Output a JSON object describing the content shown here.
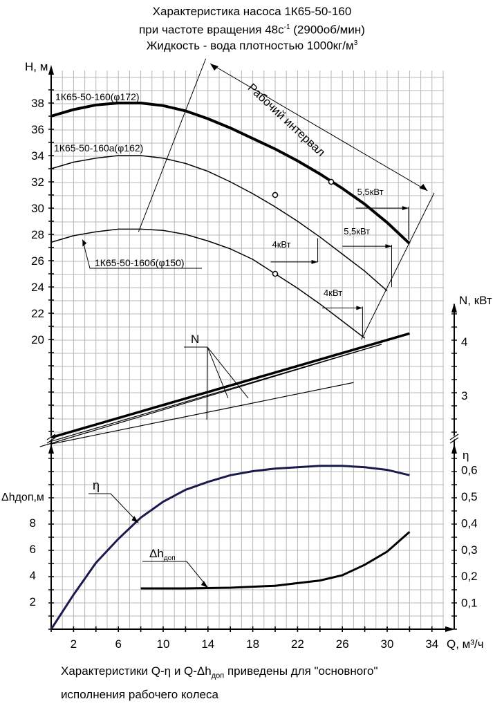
{
  "titles": {
    "line1": "Характеристика насоса 1К65-50-160",
    "line2_prefix": "при частоте вращения 48с",
    "line2_sup": "-1",
    "line2_suffix": " (2900об/мин)",
    "line3_prefix": "Жидкость - вода плотностью 1000кг/м",
    "line3_sup": "3"
  },
  "footer": {
    "line1_prefix": "Характеристики Q-η и Q-Δh",
    "line1_sub": "доп",
    "line1_suffix": " приведены для \"основного\"",
    "line2": "исполнения рабочего колеса"
  },
  "colors": {
    "axis": "#000000",
    "grid": "#b8b8b8",
    "eta_curve": "#1a1a4e"
  },
  "chart_data": {
    "type": "line",
    "x_axis": {
      "label": "Q, м³/ч",
      "range": [
        0,
        35
      ],
      "ticks": [
        2,
        6,
        10,
        14,
        18,
        22,
        26,
        30,
        34
      ]
    },
    "panels": [
      {
        "name": "head",
        "y_axis": {
          "label": "H, м",
          "range": [
            20,
            38
          ],
          "ticks": [
            20,
            22,
            24,
            26,
            28,
            30,
            32,
            34,
            36,
            38
          ]
        },
        "series": [
          {
            "name": "1К65-50-160(φ172)",
            "x": [
              0,
              2,
              4,
              6,
              8,
              10,
              12,
              14,
              16,
              18,
              20,
              22,
              24,
              26,
              28,
              30,
              32
            ],
            "y": [
              37.0,
              37.5,
              37.85,
              38.0,
              38.0,
              37.8,
              37.4,
              36.8,
              36.1,
              35.3,
              34.5,
              33.6,
              32.6,
              31.5,
              30.3,
              28.9,
              27.3
            ]
          },
          {
            "name": "1К65-50-160а(φ162)",
            "x": [
              0,
              2,
              4,
              6,
              8,
              10,
              12,
              14,
              16,
              18,
              20,
              22,
              24,
              26,
              28,
              30
            ],
            "y": [
              33.0,
              33.5,
              33.8,
              34.0,
              34.0,
              33.8,
              33.4,
              32.8,
              32.0,
              31.1,
              30.1,
              29.0,
              27.8,
              26.5,
              25.2,
              23.7
            ]
          },
          {
            "name": "1К65-50-160б(φ150)",
            "x": [
              0,
              2,
              4,
              6,
              8,
              10,
              12,
              14,
              16,
              18,
              20,
              22,
              24,
              26,
              28
            ],
            "y": [
              27.4,
              27.9,
              28.2,
              28.4,
              28.4,
              28.3,
              28.0,
              27.5,
              26.9,
              26.1,
              25.0,
              23.9,
              22.7,
              21.4,
              20.1
            ]
          }
        ],
        "points": [
          {
            "x": 25,
            "y": 32.0
          },
          {
            "x": 20,
            "y": 31.0
          },
          {
            "x": 20,
            "y": 25.0
          }
        ],
        "annotations": [
          "Рабочий интервал",
          "5,5кВт",
          "5,5кВт",
          "4кВт",
          "4кВт"
        ]
      },
      {
        "name": "power",
        "y_axis": {
          "label": "N, кВт",
          "range": [
            2,
            4.5
          ],
          "ticks": [
            3,
            4
          ]
        },
        "series": [
          {
            "name": "N",
            "x": [
              0,
              32
            ],
            "y": [
              2.22,
              4.15
            ]
          },
          {
            "name": "N",
            "x": [
              0,
              29.5
            ],
            "y": [
              2.15,
              3.95
            ]
          },
          {
            "name": "N",
            "x": [
              0,
              27
            ],
            "y": [
              2.1,
              3.24
            ]
          }
        ],
        "label": "N"
      },
      {
        "name": "efficiency",
        "y_axis": {
          "label": "η",
          "range": [
            0,
            0.6
          ],
          "ticks": [
            0.1,
            0.2,
            0.3,
            0.4,
            0.5,
            0.6
          ]
        },
        "series": [
          {
            "name": "η",
            "x": [
              0,
              2,
              4,
              6,
              8,
              10,
              12,
              14,
              16,
              18,
              20,
              22,
              24,
              26,
              28,
              30,
              32
            ],
            "y": [
              0,
              0.13,
              0.25,
              0.34,
              0.42,
              0.48,
              0.525,
              0.555,
              0.58,
              0.595,
              0.605,
              0.61,
              0.615,
              0.615,
              0.61,
              0.6,
              0.58
            ]
          }
        ],
        "label": "η"
      },
      {
        "name": "npsh",
        "y_axis": {
          "label": "Δhдоп,м",
          "range": [
            0,
            10
          ],
          "ticks": [
            2,
            4,
            6,
            8
          ]
        },
        "series": [
          {
            "name": "Δhдоп",
            "x": [
              8,
              12,
              16,
              20,
              22,
              24,
              26,
              28,
              30,
              32
            ],
            "y": [
              3.0,
              3.0,
              3.05,
              3.2,
              3.4,
              3.6,
              4.0,
              4.8,
              5.8,
              7.3
            ]
          }
        ],
        "label": "Δhдоп"
      }
    ]
  }
}
